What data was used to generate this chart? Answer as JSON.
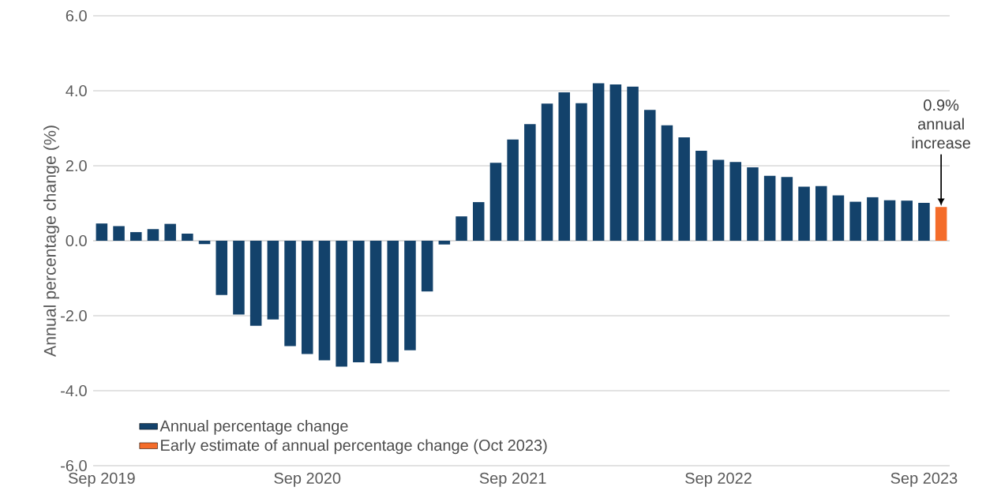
{
  "chart_data": {
    "type": "bar",
    "ylabel": "Annual percentage change (%)",
    "categories": [
      "Sep 2019",
      null,
      null,
      null,
      null,
      null,
      null,
      null,
      null,
      null,
      null,
      null,
      "Sep 2020",
      null,
      null,
      null,
      null,
      null,
      null,
      null,
      null,
      null,
      null,
      null,
      "Sep 2021",
      null,
      null,
      null,
      null,
      null,
      null,
      null,
      null,
      null,
      null,
      null,
      "Sep 2022",
      null,
      null,
      null,
      null,
      null,
      null,
      null,
      null,
      null,
      null,
      null,
      "Sep 2023",
      null
    ],
    "series": [
      {
        "name": "Annual percentage change",
        "color": "#13426b",
        "values": [
          0.46,
          0.39,
          0.23,
          0.31,
          0.45,
          0.19,
          -0.09,
          -1.45,
          -1.97,
          -2.27,
          -2.1,
          -2.81,
          -3.02,
          -3.19,
          -3.36,
          -3.24,
          -3.27,
          -3.23,
          -2.92,
          -1.35,
          -0.1,
          0.65,
          1.03,
          2.08,
          2.7,
          3.11,
          3.66,
          3.96,
          3.67,
          4.2,
          4.17,
          4.11,
          3.49,
          3.08,
          2.76,
          2.4,
          2.16,
          2.1,
          1.96,
          1.73,
          1.7,
          1.44,
          1.46,
          1.21,
          1.04,
          1.16,
          1.08,
          1.07,
          1.01,
          null
        ]
      },
      {
        "name": "Early estimate of annual percentage change (Oct 2023)",
        "color": "#f46c2a",
        "values": [
          null,
          null,
          null,
          null,
          null,
          null,
          null,
          null,
          null,
          null,
          null,
          null,
          null,
          null,
          null,
          null,
          null,
          null,
          null,
          null,
          null,
          null,
          null,
          null,
          null,
          null,
          null,
          null,
          null,
          null,
          null,
          null,
          null,
          null,
          null,
          null,
          null,
          null,
          null,
          null,
          null,
          null,
          null,
          null,
          null,
          null,
          null,
          null,
          null,
          0.9
        ]
      }
    ],
    "ylim": [
      -6,
      6
    ],
    "yticks": [
      {
        "value": -6,
        "label": "-6.0"
      },
      {
        "value": -4,
        "label": "-4.0"
      },
      {
        "value": -2,
        "label": "-2.0"
      },
      {
        "value": 0,
        "label": "0.0"
      },
      {
        "value": 2,
        "label": "2.0"
      },
      {
        "value": 4,
        "label": "4.0"
      },
      {
        "value": 6,
        "label": "6.0"
      }
    ],
    "grid": "y",
    "legend": "bottom left",
    "annotations": [
      "0.9% annual increase"
    ]
  }
}
